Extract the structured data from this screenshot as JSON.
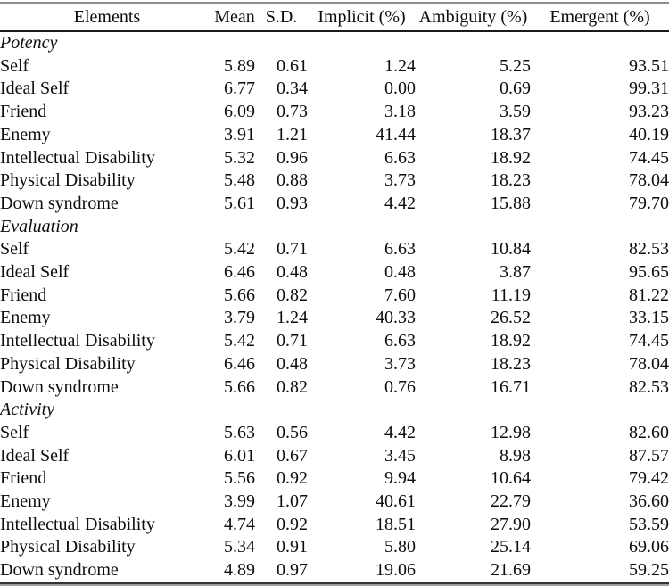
{
  "table": {
    "columns": [
      "Elements",
      "Mean",
      "S.D.",
      "Implicit (%)",
      "Ambiguity (%)",
      "Emergent (%)"
    ],
    "sections": [
      {
        "label": "Potency",
        "rows": [
          {
            "element": "Self",
            "mean": "5.89",
            "sd": "0.61",
            "implicit": "1.24",
            "ambiguity": "5.25",
            "emergent": "93.51"
          },
          {
            "element": "Ideal Self",
            "mean": "6.77",
            "sd": "0.34",
            "implicit": "0.00",
            "ambiguity": "0.69",
            "emergent": "99.31"
          },
          {
            "element": "Friend",
            "mean": "6.09",
            "sd": "0.73",
            "implicit": "3.18",
            "ambiguity": "3.59",
            "emergent": "93.23"
          },
          {
            "element": "Enemy",
            "mean": "3.91",
            "sd": "1.21",
            "implicit": "41.44",
            "ambiguity": "18.37",
            "emergent": "40.19"
          },
          {
            "element": "Intellectual Disability",
            "mean": "5.32",
            "sd": "0.96",
            "implicit": "6.63",
            "ambiguity": "18.92",
            "emergent": "74.45"
          },
          {
            "element": "Physical Disability",
            "mean": "5.48",
            "sd": "0.88",
            "implicit": "3.73",
            "ambiguity": "18.23",
            "emergent": "78.04"
          },
          {
            "element": "Down syndrome",
            "mean": "5.61",
            "sd": "0.93",
            "implicit": "4.42",
            "ambiguity": "15.88",
            "emergent": "79.70"
          }
        ]
      },
      {
        "label": "Evaluation",
        "rows": [
          {
            "element": "Self",
            "mean": "5.42",
            "sd": "0.71",
            "implicit": "6.63",
            "ambiguity": "10.84",
            "emergent": "82.53"
          },
          {
            "element": "Ideal Self",
            "mean": "6.46",
            "sd": "0.48",
            "implicit": "0.48",
            "ambiguity": "3.87",
            "emergent": "95.65"
          },
          {
            "element": "Friend",
            "mean": "5.66",
            "sd": "0.82",
            "implicit": "7.60",
            "ambiguity": "11.19",
            "emergent": "81.22"
          },
          {
            "element": "Enemy",
            "mean": "3.79",
            "sd": "1.24",
            "implicit": "40.33",
            "ambiguity": "26.52",
            "emergent": "33.15"
          },
          {
            "element": "Intellectual Disability",
            "mean": "5.42",
            "sd": "0.71",
            "implicit": "6.63",
            "ambiguity": "18.92",
            "emergent": "74.45"
          },
          {
            "element": "Physical Disability",
            "mean": "6.46",
            "sd": "0.48",
            "implicit": "3.73",
            "ambiguity": "18.23",
            "emergent": "78.04"
          },
          {
            "element": "Down syndrome",
            "mean": "5.66",
            "sd": "0.82",
            "implicit": "0.76",
            "ambiguity": "16.71",
            "emergent": "82.53"
          }
        ]
      },
      {
        "label": "Activity",
        "rows": [
          {
            "element": "Self",
            "mean": "5.63",
            "sd": "0.56",
            "implicit": "4.42",
            "ambiguity": "12.98",
            "emergent": "82.60"
          },
          {
            "element": "Ideal Self",
            "mean": "6.01",
            "sd": "0.67",
            "implicit": "3.45",
            "ambiguity": "8.98",
            "emergent": "87.57"
          },
          {
            "element": "Friend",
            "mean": "5.56",
            "sd": "0.92",
            "implicit": "9.94",
            "ambiguity": "10.64",
            "emergent": "79.42"
          },
          {
            "element": "Enemy",
            "mean": "3.99",
            "sd": "1.07",
            "implicit": "40.61",
            "ambiguity": "22.79",
            "emergent": "36.60"
          },
          {
            "element": "Intellectual Disability",
            "mean": "4.74",
            "sd": "0.92",
            "implicit": "18.51",
            "ambiguity": "27.90",
            "emergent": "53.59"
          },
          {
            "element": "Physical Disability",
            "mean": "5.34",
            "sd": "0.91",
            "implicit": "5.80",
            "ambiguity": "25.14",
            "emergent": "69.06"
          },
          {
            "element": "Down syndrome",
            "mean": "4.89",
            "sd": "0.97",
            "implicit": "19.06",
            "ambiguity": "21.69",
            "emergent": "59.25"
          }
        ]
      }
    ]
  },
  "colors": {
    "text": "#0d0d0d",
    "top_rule": "#8e8e8e",
    "header_rule": "#1a1a1a",
    "bottom_rule_dark": "#333333",
    "bottom_rule_gray": "#9e9e9e",
    "background": "#ffffff"
  }
}
